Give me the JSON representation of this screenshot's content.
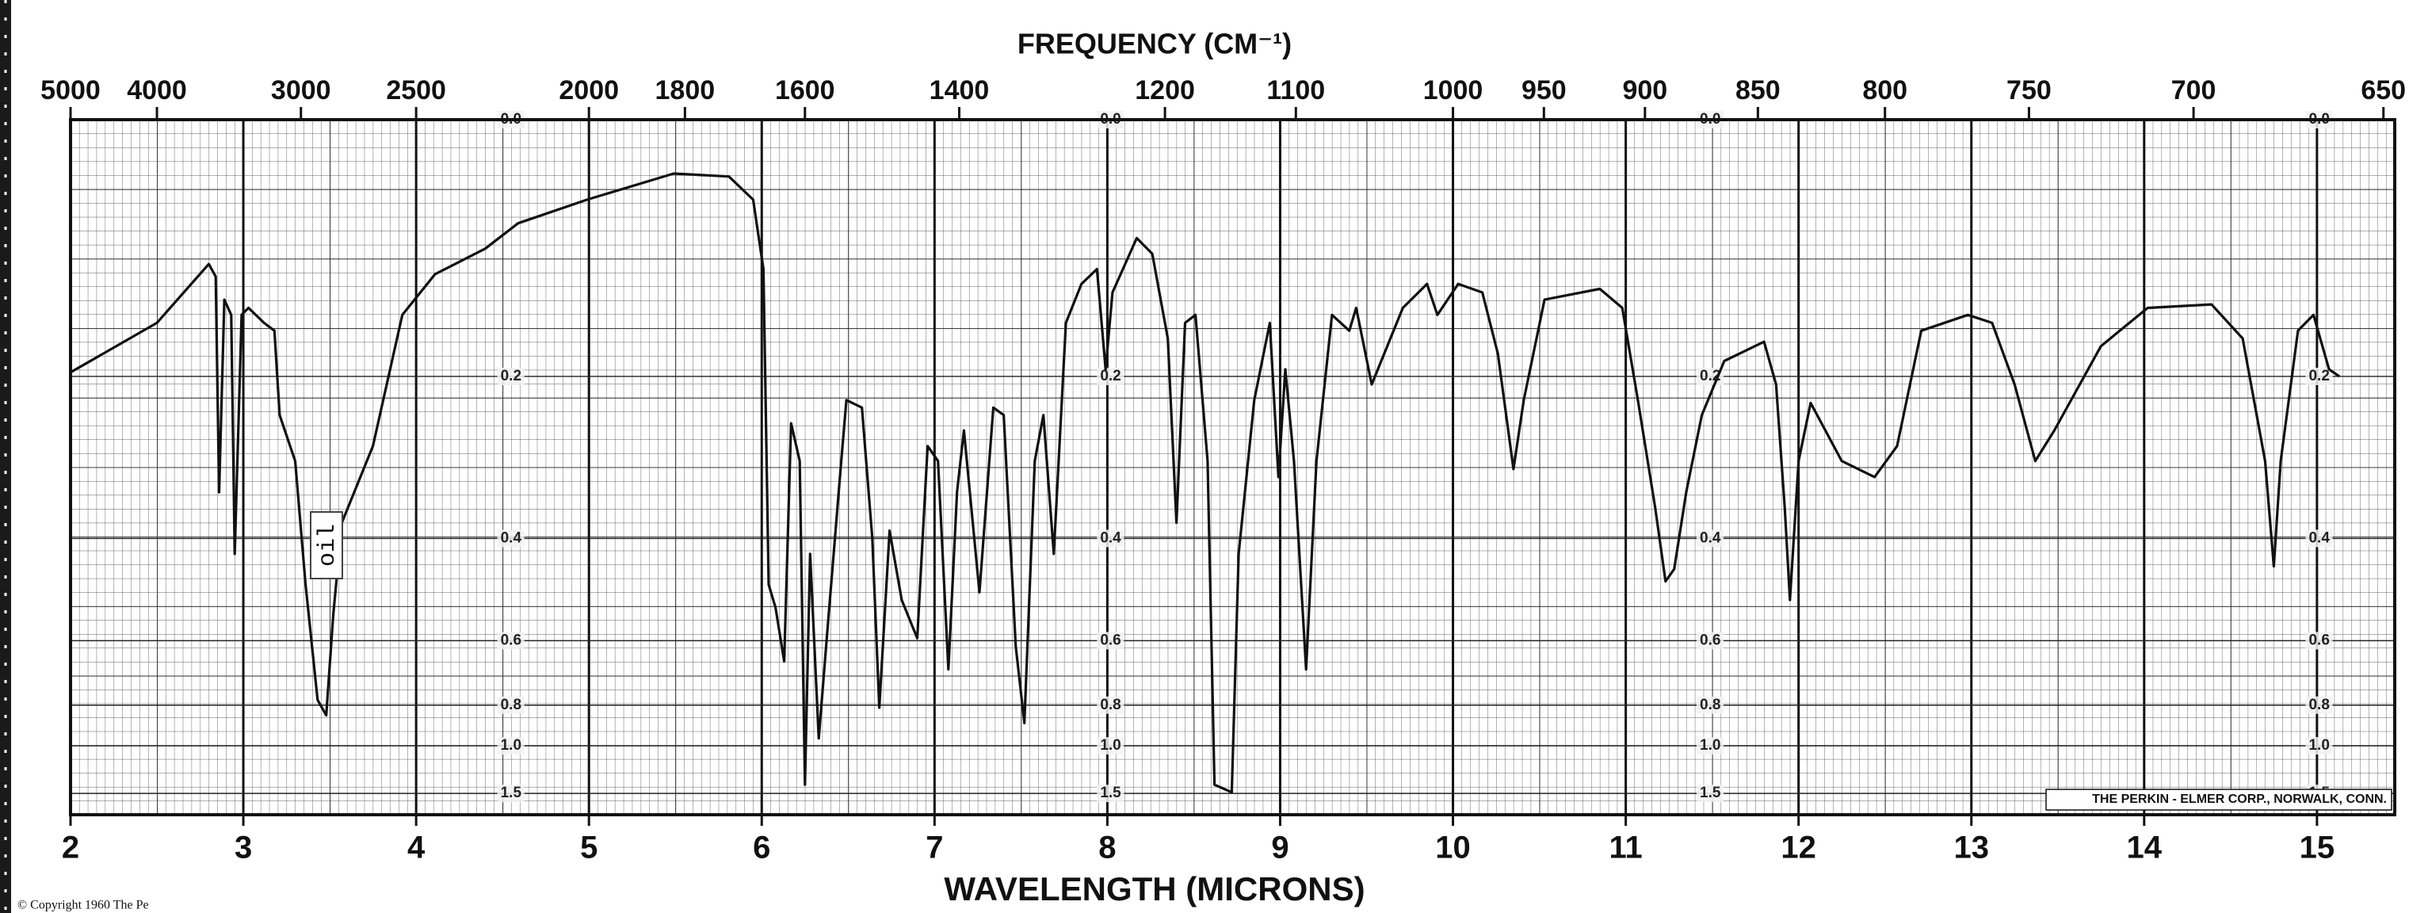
{
  "chart_data": {
    "type": "line",
    "title": "FREQUENCY (CM⁻¹)",
    "x_label": "WAVELENGTH (MICRONS)",
    "annotation": "oil",
    "credit": "THE PERKIN - ELMER CORP., NORWALK, CONN.",
    "copyright": "© Copyright 1960 The Pe",
    "color": "#111111",
    "x": [
      2.0,
      2.5,
      2.8,
      2.84,
      2.86,
      2.89,
      2.93,
      2.95,
      2.99,
      3.03,
      3.12,
      3.18,
      3.21,
      3.3,
      3.36,
      3.43,
      3.48,
      3.52,
      3.57,
      3.75,
      3.92,
      4.11,
      4.4,
      4.59,
      4.99,
      5.49,
      5.81,
      5.95,
      6.01,
      6.04,
      6.08,
      6.13,
      6.17,
      6.22,
      6.25,
      6.28,
      6.33,
      6.38,
      6.46,
      6.49,
      6.58,
      6.64,
      6.68,
      6.74,
      6.81,
      6.9,
      6.96,
      7.02,
      7.08,
      7.13,
      7.17,
      7.26,
      7.34,
      7.4,
      7.47,
      7.52,
      7.58,
      7.63,
      7.69,
      7.76,
      7.85,
      7.94,
      7.99,
      8.03,
      8.17,
      8.26,
      8.35,
      8.4,
      8.45,
      8.51,
      8.58,
      8.62,
      8.72,
      8.76,
      8.85,
      8.94,
      8.99,
      9.03,
      9.08,
      9.15,
      9.21,
      9.3,
      9.4,
      9.44,
      9.53,
      9.71,
      9.85,
      9.91,
      10.03,
      10.17,
      10.26,
      10.35,
      10.41,
      10.53,
      10.85,
      10.98,
      11.07,
      11.17,
      11.23,
      11.28,
      11.35,
      11.44,
      11.57,
      11.8,
      11.87,
      11.92,
      11.95,
      12.0,
      12.07,
      12.25,
      12.44,
      12.57,
      12.71,
      12.98,
      13.12,
      13.25,
      13.37,
      13.48,
      13.75,
      14.02,
      14.39,
      14.57,
      14.7,
      14.75,
      14.79,
      14.89,
      14.98,
      15.07,
      15.13
    ],
    "values": [
      0.196,
      0.15,
      0.101,
      0.111,
      0.333,
      0.13,
      0.143,
      0.425,
      0.143,
      0.137,
      0.15,
      0.157,
      0.24,
      0.293,
      0.479,
      0.78,
      0.842,
      0.541,
      0.376,
      0.275,
      0.143,
      0.109,
      0.089,
      0.07,
      0.053,
      0.035,
      0.037,
      0.053,
      0.105,
      0.479,
      0.525,
      0.655,
      0.249,
      0.293,
      1.355,
      0.425,
      0.956,
      0.576,
      0.293,
      0.224,
      0.232,
      0.4,
      0.81,
      0.388,
      0.509,
      0.594,
      0.275,
      0.293,
      0.678,
      0.333,
      0.257,
      0.494,
      0.232,
      0.24,
      0.614,
      0.877,
      0.293,
      0.24,
      0.425,
      0.15,
      0.117,
      0.105,
      0.193,
      0.124,
      0.081,
      0.093,
      0.164,
      0.376,
      0.15,
      0.143,
      0.293,
      1.355,
      1.479,
      0.425,
      0.224,
      0.15,
      0.313,
      0.193,
      0.293,
      0.678,
      0.293,
      0.143,
      0.157,
      0.137,
      0.208,
      0.137,
      0.117,
      0.143,
      0.117,
      0.124,
      0.178,
      0.303,
      0.224,
      0.13,
      0.121,
      0.137,
      0.224,
      0.354,
      0.473,
      0.451,
      0.333,
      0.24,
      0.185,
      0.167,
      0.208,
      0.354,
      0.509,
      0.293,
      0.227,
      0.293,
      0.313,
      0.275,
      0.157,
      0.143,
      0.15,
      0.208,
      0.293,
      0.257,
      0.171,
      0.137,
      0.134,
      0.164,
      0.293,
      0.446,
      0.293,
      0.157,
      0.143,
      0.193,
      0.2
    ],
    "xlim": [
      2,
      15.45
    ],
    "xticks": [
      2,
      3,
      4,
      5,
      6,
      7,
      8,
      9,
      10,
      11,
      12,
      13,
      14,
      15
    ],
    "x2scale": "wavenumber",
    "x2ticks": [
      5000,
      4000,
      3000,
      2500,
      2000,
      1800,
      1600,
      1400,
      1200,
      1100,
      1000,
      950,
      900,
      850,
      800,
      750,
      700,
      650
    ],
    "yscale": "absorbance",
    "ylim": [
      0,
      3
    ],
    "yticks": [
      {
        "value": 0,
        "label": "0.0"
      },
      0.2,
      0.4,
      0.6,
      0.8,
      {
        "value": 1,
        "label": "1.0"
      },
      1.5
    ],
    "grid": true
  }
}
